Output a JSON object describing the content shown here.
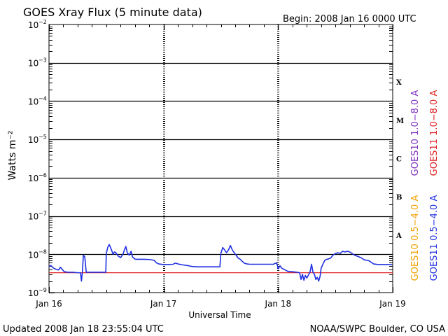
{
  "header": {
    "title": "GOES Xray Flux (5 minute data)",
    "begin": "Begin:  2008 Jan 16 0000 UTC"
  },
  "footer": {
    "updated": "Updated 2008 Jan 18 23:55:04 UTC",
    "source": "NOAA/SWPC Boulder, CO USA"
  },
  "colors": {
    "goes10_long": "#7f2fbf",
    "goes11_long": "#e02020",
    "goes10_short": "#f0a000",
    "goes11_short": "#2030e0"
  },
  "chart_data": {
    "type": "line",
    "title": "GOES Xray Flux (5 minute data)",
    "xlabel": "Universal Time",
    "ylabel": "Watts m⁻²",
    "y_scale": "log",
    "ylim": [
      1e-09,
      0.01
    ],
    "xlim": [
      "2008-01-16T00:00",
      "2008-01-19T00:00"
    ],
    "x_ticks": [
      "Jan 16",
      "Jan 17",
      "Jan 18",
      "Jan 19"
    ],
    "y_ticks": [
      {
        "base": "10",
        "exp": "−9",
        "value": 1e-09
      },
      {
        "base": "10",
        "exp": "−8",
        "value": 1e-08
      },
      {
        "base": "10",
        "exp": "−7",
        "value": 1e-07
      },
      {
        "base": "10",
        "exp": "−6",
        "value": 1e-06
      },
      {
        "base": "10",
        "exp": "−5",
        "value": 1e-05
      },
      {
        "base": "10",
        "exp": "−4",
        "value": 0.0001
      },
      {
        "base": "10",
        "exp": "−3",
        "value": 0.001
      },
      {
        "base": "10",
        "exp": "−2",
        "value": 0.01
      }
    ],
    "flare_classes": [
      {
        "label": "A",
        "low": 1e-08
      },
      {
        "label": "B",
        "low": 1e-07
      },
      {
        "label": "C",
        "low": 1e-06
      },
      {
        "label": "M",
        "low": 1e-05
      },
      {
        "label": "X",
        "low": 0.0001
      }
    ],
    "grid": "horizontal lines at each decade",
    "legend_right": [
      {
        "label": "GOES10 1.0−8.0 A",
        "color": "#7f2fbf"
      },
      {
        "label": "GOES11 1.0−8.0 A",
        "color": "#e02020"
      }
    ],
    "legend_left": [
      {
        "label": "GOES10 0.5−4.0 A",
        "color": "#f0a000"
      },
      {
        "label": "GOES11 0.5−4.0 A",
        "color": "#2030e0"
      }
    ],
    "series": [
      {
        "name": "GOES11 1.0−8.0 A",
        "color": "#e02020",
        "points": [
          [
            0,
            3.3e-09
          ],
          [
            72,
            3.3e-09
          ]
        ]
      },
      {
        "name": "GOES11 0.5−4.0 A",
        "color": "#2030e0",
        "points": [
          [
            0.0,
            4.8e-09
          ],
          [
            0.4,
            5.1e-09
          ],
          [
            0.8,
            4.5e-09
          ],
          [
            1.2,
            4.2e-09
          ],
          [
            1.6,
            4e-09
          ],
          [
            2.0,
            3.9e-09
          ],
          [
            2.4,
            4.6e-09
          ],
          [
            2.8,
            4e-09
          ],
          [
            3.2,
            3.5e-09
          ],
          [
            4.0,
            3.4e-09
          ],
          [
            5.0,
            3.4e-09
          ],
          [
            6.0,
            3.3e-09
          ],
          [
            6.6,
            3.3e-09
          ],
          [
            6.8,
            2e-09
          ],
          [
            7.0,
            3.5e-09
          ],
          [
            7.2,
            9.5e-09
          ],
          [
            7.5,
            8.5e-09
          ],
          [
            7.8,
            3.4e-09
          ],
          [
            9.0,
            3.4e-09
          ],
          [
            10.0,
            3.4e-09
          ],
          [
            11.0,
            3.4e-09
          ],
          [
            11.9,
            3.4e-09
          ],
          [
            12.0,
            1.05e-08
          ],
          [
            12.3,
            1.5e-08
          ],
          [
            12.6,
            1.8e-08
          ],
          [
            12.9,
            1.5e-08
          ],
          [
            13.2,
            1.2e-08
          ],
          [
            13.4,
            1e-08
          ],
          [
            13.7,
            1.15e-08
          ],
          [
            14.0,
            1.1e-08
          ],
          [
            14.5,
            9e-09
          ],
          [
            15.0,
            8.2e-09
          ],
          [
            15.5,
            1e-08
          ],
          [
            15.8,
            1.3e-08
          ],
          [
            16.1,
            1.6e-08
          ],
          [
            16.4,
            1.1e-08
          ],
          [
            16.8,
            9.5e-09
          ],
          [
            17.2,
            1.2e-08
          ],
          [
            17.5,
            8.5e-09
          ],
          [
            18.0,
            7.5e-09
          ],
          [
            18.5,
            7.4e-09
          ],
          [
            19.0,
            7.4e-09
          ],
          [
            20.0,
            7.4e-09
          ],
          [
            21.0,
            7.3e-09
          ],
          [
            22.0,
            7e-09
          ],
          [
            22.5,
            6e-09
          ],
          [
            23.0,
            5.6e-09
          ],
          [
            24.0,
            5.4e-09
          ],
          [
            25.0,
            5.4e-09
          ],
          [
            26.0,
            5.5e-09
          ],
          [
            26.5,
            5.9e-09
          ],
          [
            27.0,
            5.6e-09
          ],
          [
            28.0,
            5.3e-09
          ],
          [
            29.0,
            5.1e-09
          ],
          [
            30.0,
            4.8e-09
          ],
          [
            31.0,
            4.7e-09
          ],
          [
            32.0,
            4.7e-09
          ],
          [
            33.0,
            4.7e-09
          ],
          [
            34.0,
            4.7e-09
          ],
          [
            35.0,
            4.7e-09
          ],
          [
            35.8,
            4.7e-09
          ],
          [
            36.0,
            1.05e-08
          ],
          [
            36.4,
            1.5e-08
          ],
          [
            36.8,
            1.3e-08
          ],
          [
            37.2,
            1.1e-08
          ],
          [
            37.6,
            1.3e-08
          ],
          [
            38.0,
            1.7e-08
          ],
          [
            38.4,
            1.3e-08
          ],
          [
            38.8,
            1.1e-08
          ],
          [
            39.2,
            9.5e-09
          ],
          [
            39.6,
            8e-09
          ],
          [
            40.0,
            7.5e-09
          ],
          [
            40.5,
            6.5e-09
          ],
          [
            41.0,
            5.8e-09
          ],
          [
            41.5,
            5.6e-09
          ],
          [
            42.0,
            5.5e-09
          ],
          [
            43.0,
            5.5e-09
          ],
          [
            44.0,
            5.5e-09
          ],
          [
            45.0,
            5.5e-09
          ],
          [
            46.0,
            5.5e-09
          ],
          [
            47.0,
            5.5e-09
          ],
          [
            47.7,
            6e-09
          ],
          [
            48.0,
            4.2e-09
          ],
          [
            48.4,
            5e-09
          ],
          [
            48.8,
            4.3e-09
          ],
          [
            49.5,
            3.9e-09
          ],
          [
            50.0,
            3.6e-09
          ],
          [
            51.0,
            3.5e-09
          ],
          [
            52.0,
            3.4e-09
          ],
          [
            52.5,
            3.3e-09
          ],
          [
            52.8,
            2.2e-09
          ],
          [
            53.1,
            3e-09
          ],
          [
            53.4,
            2.1e-09
          ],
          [
            53.7,
            2.8e-09
          ],
          [
            54.0,
            2.4e-09
          ],
          [
            54.3,
            2.8e-09
          ],
          [
            54.7,
            3.5e-09
          ],
          [
            55.0,
            5.5e-09
          ],
          [
            55.3,
            3.4e-09
          ],
          [
            55.6,
            3e-09
          ],
          [
            55.9,
            2.2e-09
          ],
          [
            56.2,
            2.5e-09
          ],
          [
            56.5,
            2e-09
          ],
          [
            56.8,
            2.7e-09
          ],
          [
            57.0,
            4.3e-09
          ],
          [
            57.4,
            5.6e-09
          ],
          [
            57.8,
            7e-09
          ],
          [
            58.2,
            7.4e-09
          ],
          [
            58.6,
            7.6e-09
          ],
          [
            59.0,
            8e-09
          ],
          [
            59.5,
            9.5e-09
          ],
          [
            60.0,
            1.05e-08
          ],
          [
            60.5,
            1.1e-08
          ],
          [
            61.0,
            1.05e-08
          ],
          [
            61.5,
            1.2e-08
          ],
          [
            62.0,
            1.15e-08
          ],
          [
            62.5,
            1.2e-08
          ],
          [
            63.0,
            1.15e-08
          ],
          [
            63.5,
            1.05e-08
          ],
          [
            64.0,
            9.5e-09
          ],
          [
            64.5,
            9e-09
          ],
          [
            65.0,
            8.5e-09
          ],
          [
            65.5,
            8e-09
          ],
          [
            66.0,
            7.2e-09
          ],
          [
            66.5,
            7e-09
          ],
          [
            67.0,
            6.8e-09
          ],
          [
            67.5,
            6.2e-09
          ],
          [
            68.0,
            5.6e-09
          ],
          [
            69.0,
            5.4e-09
          ],
          [
            70.0,
            5.4e-09
          ],
          [
            71.0,
            5.4e-09
          ],
          [
            71.9,
            5.4e-09
          ]
        ]
      }
    ]
  }
}
